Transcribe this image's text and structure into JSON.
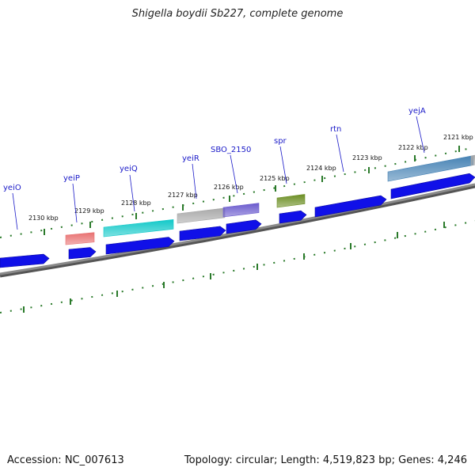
{
  "header": {
    "title": "Shigella boydii Sb227, complete genome"
  },
  "footer": {
    "accession": "Accession: NC_007613",
    "summary": "Topology: circular; Length: 4,519,823 bp; Genes: 4,246"
  },
  "colors": {
    "gene_arrow": "#1010e8",
    "backbone": "#8a8a8a",
    "tick": "#2a7a2a",
    "label": "#1a1ac8"
  },
  "scale": {
    "ticks": [
      {
        "label": "2130 kbp"
      },
      {
        "label": "2129 kbp"
      },
      {
        "label": "2128 kbp"
      },
      {
        "label": "2127 kbp"
      },
      {
        "label": "2126 kbp"
      },
      {
        "label": "2125 kbp"
      },
      {
        "label": "2124 kbp"
      },
      {
        "label": "2123 kbp"
      },
      {
        "label": "2122 kbp"
      },
      {
        "label": "2121 kbp"
      }
    ]
  },
  "gene_labels": [
    {
      "name": "yeiO"
    },
    {
      "name": "yeiP"
    },
    {
      "name": "yeiQ"
    },
    {
      "name": "yeiR"
    },
    {
      "name": "SBO_2150"
    },
    {
      "name": "spr"
    },
    {
      "name": "rtn"
    },
    {
      "name": "yejA"
    }
  ],
  "features": [
    {
      "name": "yeiP",
      "color": "#e87070"
    },
    {
      "name": "yeiQ",
      "color": "#10c8c8"
    },
    {
      "name": "yeiR",
      "color": "#a8a8a8"
    },
    {
      "name": "SBO_2150",
      "color": "#6a5acd"
    },
    {
      "name": "spr",
      "color": "#6b8e23"
    },
    {
      "name": "yejA",
      "color": "#4682b4"
    },
    {
      "name": "unlabeled-edge",
      "color": "#a8a8a8"
    }
  ]
}
